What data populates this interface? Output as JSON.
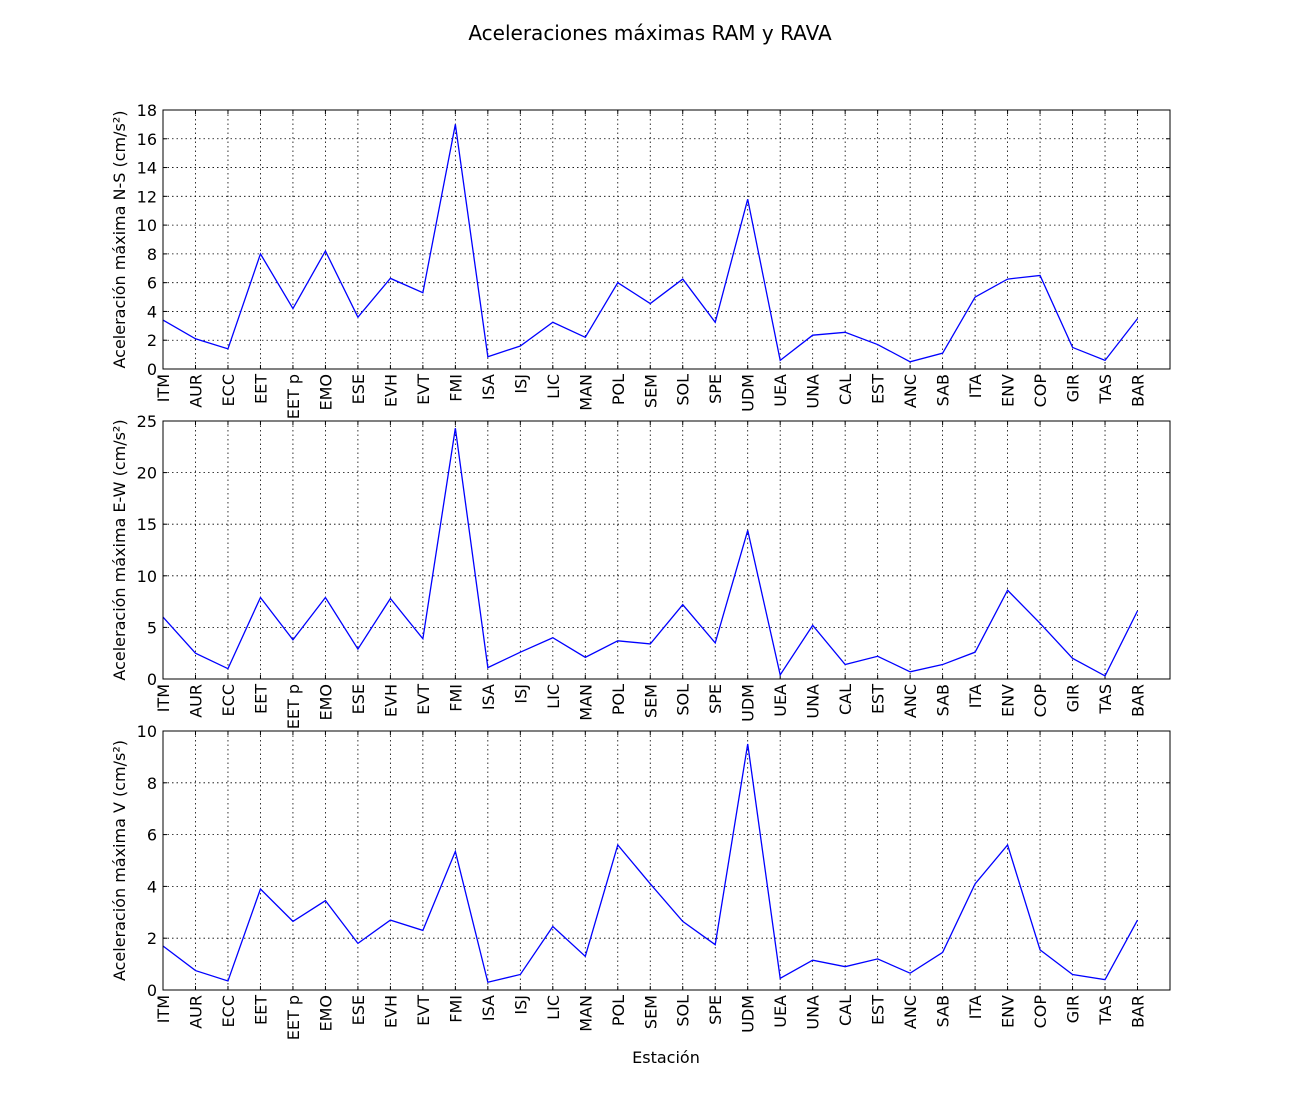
{
  "chart_data": [
    {
      "type": "line",
      "title": "Aceleraciones máximas RAM y RAVA",
      "xlabel": "",
      "ylabel": "Aceleración máxima N-S (cm/s²)",
      "ylim": [
        0,
        18
      ],
      "yticks": [
        0,
        2,
        4,
        6,
        8,
        10,
        12,
        14,
        16,
        18
      ],
      "grid": true,
      "color": "#0000ff",
      "categories": [
        "ITM",
        "AUR",
        "ECC",
        "EET",
        "EET p",
        "EMO",
        "ESE",
        "EVH",
        "EVT",
        "FMI",
        "ISA",
        "ISJ",
        "LIC",
        "MAN",
        "POL",
        "SEM",
        "SOL",
        "SPE",
        "UDM",
        "UEA",
        "UNA",
        "CAL",
        "EST",
        "ANC",
        "SAB",
        "ITA",
        "ENV",
        "COP",
        "GIR",
        "TAS",
        "BAR"
      ],
      "values": [
        3.4,
        2.1,
        1.4,
        8.0,
        4.2,
        8.2,
        3.6,
        6.3,
        5.3,
        17.0,
        0.85,
        1.6,
        3.25,
        2.2,
        6.0,
        4.55,
        6.25,
        3.25,
        11.8,
        0.6,
        2.35,
        2.55,
        1.7,
        0.5,
        1.1,
        5.0,
        6.25,
        6.5,
        1.5,
        0.6,
        3.5
      ]
    },
    {
      "type": "line",
      "ylabel": "Aceleración máxima E-W (cm/s²)",
      "ylim": [
        0,
        25
      ],
      "yticks": [
        0,
        5,
        10,
        15,
        20,
        25
      ],
      "grid": true,
      "color": "#0000ff",
      "categories": [
        "ITM",
        "AUR",
        "ECC",
        "EET",
        "EET p",
        "EMO",
        "ESE",
        "EVH",
        "EVT",
        "FMI",
        "ISA",
        "ISJ",
        "LIC",
        "MAN",
        "POL",
        "SEM",
        "SOL",
        "SPE",
        "UDM",
        "UEA",
        "UNA",
        "CAL",
        "EST",
        "ANC",
        "SAB",
        "ITA",
        "ENV",
        "COP",
        "GIR",
        "TAS",
        "BAR"
      ],
      "values": [
        6.0,
        2.5,
        1.0,
        7.9,
        3.8,
        7.9,
        2.9,
        7.8,
        3.9,
        24.3,
        1.1,
        2.6,
        4.0,
        2.1,
        3.7,
        3.4,
        7.2,
        3.5,
        14.4,
        0.4,
        5.2,
        1.4,
        2.2,
        0.7,
        1.4,
        2.6,
        8.6,
        5.4,
        2.0,
        0.3,
        6.6
      ]
    },
    {
      "type": "line",
      "xlabel": "Estación",
      "ylabel": "Aceleración máxima V (cm/s²)",
      "ylim": [
        0,
        10
      ],
      "yticks": [
        0,
        2,
        4,
        6,
        8,
        10
      ],
      "grid": true,
      "color": "#0000ff",
      "categories": [
        "ITM",
        "AUR",
        "ECC",
        "EET",
        "EET p",
        "EMO",
        "ESE",
        "EVH",
        "EVT",
        "FMI",
        "ISA",
        "ISJ",
        "LIC",
        "MAN",
        "POL",
        "SEM",
        "SOL",
        "SPE",
        "UDM",
        "UEA",
        "UNA",
        "CAL",
        "EST",
        "ANC",
        "SAB",
        "ITA",
        "ENV",
        "COP",
        "GIR",
        "TAS",
        "BAR"
      ],
      "values": [
        1.7,
        0.75,
        0.35,
        3.9,
        2.65,
        3.45,
        1.8,
        2.7,
        2.3,
        5.35,
        0.3,
        0.6,
        2.45,
        1.3,
        5.6,
        4.1,
        2.65,
        1.75,
        9.5,
        0.45,
        1.15,
        0.9,
        1.2,
        0.65,
        1.45,
        4.1,
        5.6,
        1.55,
        0.6,
        0.4,
        2.7
      ]
    }
  ]
}
